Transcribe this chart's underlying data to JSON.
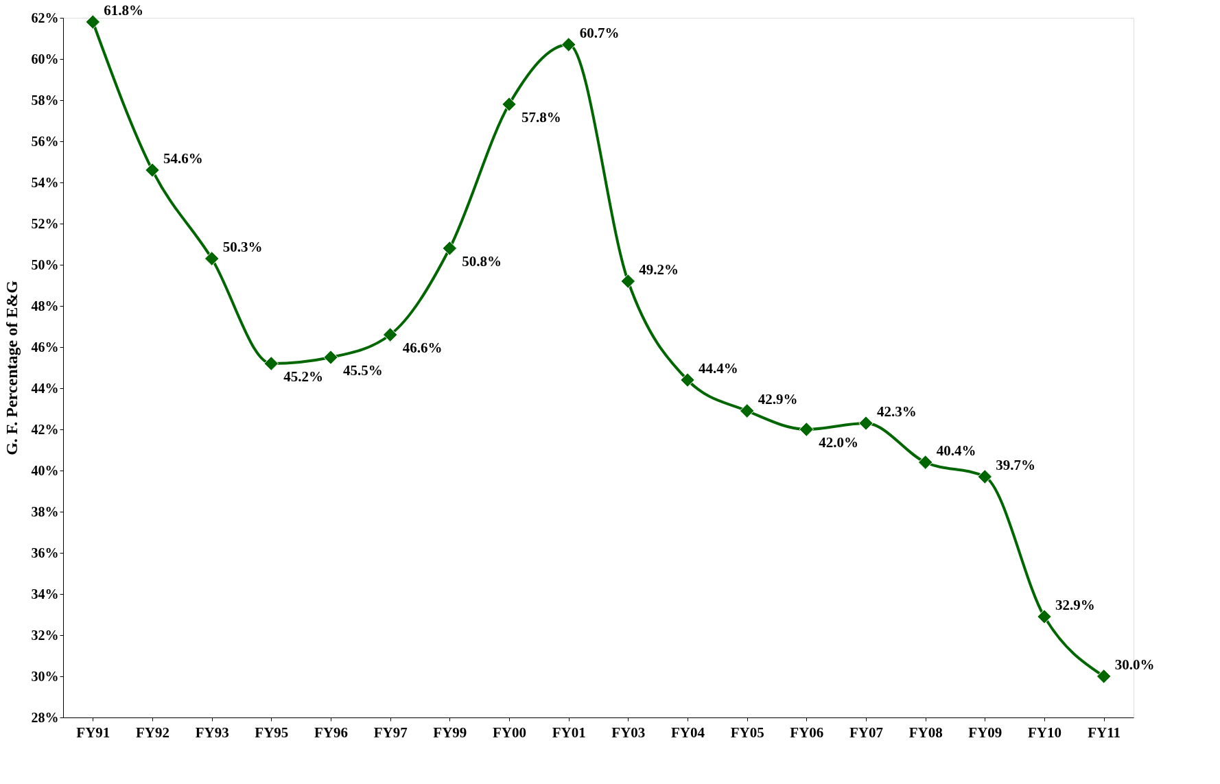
{
  "chart_data": {
    "type": "line",
    "ylabel": "G. F. Percentage of E&G",
    "categories": [
      "FY91",
      "FY92",
      "FY93",
      "FY95",
      "FY96",
      "FY97",
      "FY99",
      "FY00",
      "FY01",
      "FY03",
      "FY04",
      "FY05",
      "FY06",
      "FY07",
      "FY08",
      "FY09",
      "FY10",
      "FY11"
    ],
    "series": [
      {
        "color": "#006600",
        "values": [
          61.8,
          54.6,
          50.3,
          45.2,
          45.5,
          46.6,
          50.8,
          57.8,
          60.7,
          49.2,
          44.4,
          42.9,
          42.0,
          42.3,
          40.4,
          39.7,
          32.9,
          30.0
        ]
      }
    ],
    "ylim": [
      28,
      62
    ],
    "yticks": [
      {
        "value": 28,
        "label": "28%"
      },
      {
        "value": 30,
        "label": "30%"
      },
      {
        "value": 32,
        "label": "32%"
      },
      {
        "value": 34,
        "label": "34%"
      },
      {
        "value": 36,
        "label": "36%"
      },
      {
        "value": 38,
        "label": "38%"
      },
      {
        "value": 40,
        "label": "40%"
      },
      {
        "value": 42,
        "label": "42%"
      },
      {
        "value": 44,
        "label": "44%"
      },
      {
        "value": 46,
        "label": "46%"
      },
      {
        "value": 48,
        "label": "48%"
      },
      {
        "value": 50,
        "label": "50%"
      },
      {
        "value": 52,
        "label": "52%"
      },
      {
        "value": 54,
        "label": "54%"
      },
      {
        "value": 56,
        "label": "56%"
      },
      {
        "value": 58,
        "label": "58%"
      },
      {
        "value": 60,
        "label": "60%"
      },
      {
        "value": 62,
        "label": "62%"
      }
    ],
    "value_labels": [
      "61.8%",
      "54.6%",
      "50.3%",
      "45.2%",
      "45.5%",
      "46.6%",
      "50.8%",
      "57.8%",
      "60.7%",
      "49.2%",
      "44.4%",
      "42.9%",
      "42.0%",
      "42.3%",
      "40.4%",
      "39.7%",
      "32.9%",
      "30.0%"
    ],
    "grid": false,
    "marker": "diamond",
    "line_style": "solid"
  }
}
